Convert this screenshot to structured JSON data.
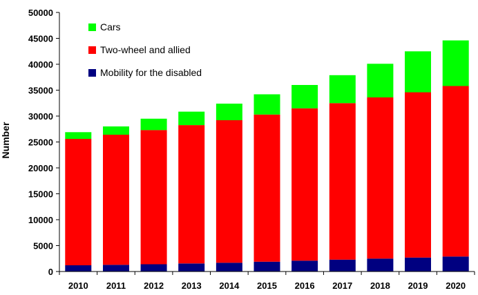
{
  "chart_data": {
    "type": "bar",
    "stacked": true,
    "categories": [
      "2010",
      "2011",
      "2012",
      "2013",
      "2014",
      "2015",
      "2016",
      "2017",
      "2018",
      "2019",
      "2020"
    ],
    "series": [
      {
        "name": "Mobility for the disabled",
        "color": "#000080",
        "values": [
          1200,
          1300,
          1400,
          1550,
          1700,
          1900,
          2100,
          2300,
          2500,
          2700,
          2900
        ]
      },
      {
        "name": "Two-wheel and allied",
        "color": "#ff0000",
        "values": [
          24400,
          25100,
          25900,
          26700,
          27500,
          28400,
          29400,
          30200,
          31100,
          31900,
          32900
        ]
      },
      {
        "name": "Cars",
        "color": "#00ff00",
        "values": [
          1300,
          1600,
          2200,
          2600,
          3200,
          3900,
          4500,
          5400,
          6500,
          7900,
          8800
        ]
      }
    ],
    "legend_order": [
      "Cars",
      "Two-wheel and allied",
      "Mobility for the disabled"
    ],
    "legend_placement": "top-left",
    "xlabel": "",
    "ylabel": "Number",
    "ylim": [
      0,
      50000
    ],
    "yticks": [
      "0",
      "5000",
      "10000",
      "15000",
      "20000",
      "25000",
      "30000",
      "35000",
      "40000",
      "45000",
      "50000"
    ],
    "grid": false
  }
}
